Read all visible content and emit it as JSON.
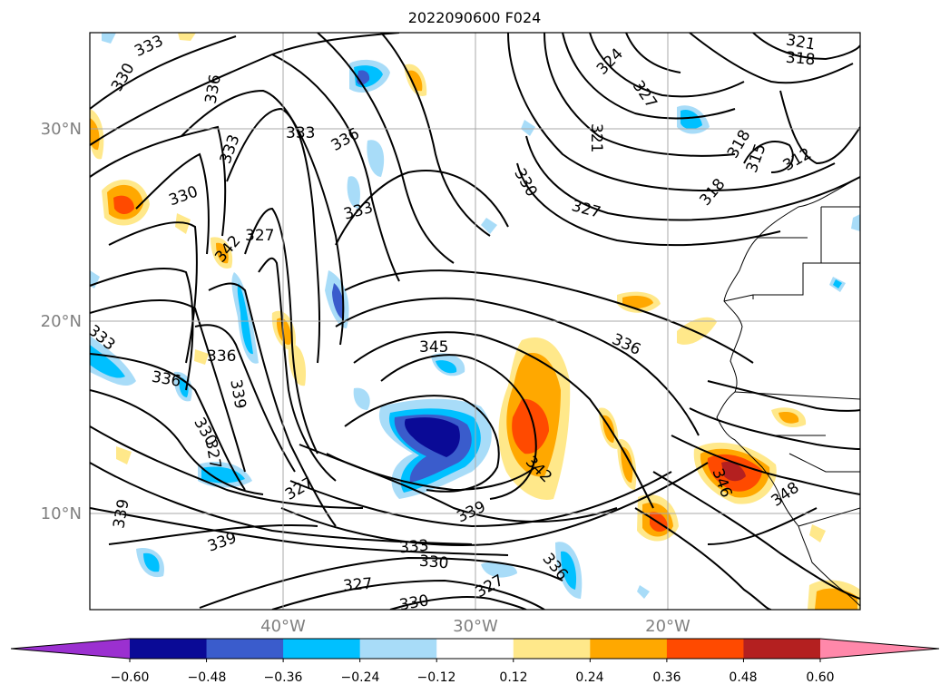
{
  "title": "2022090600 F024",
  "lat_labels": [
    "30°N",
    "20°N",
    "10°N"
  ],
  "lon_labels": [
    "40°W",
    "30°W",
    "20°W"
  ],
  "colorbar": {
    "ticks": [
      "−0.60",
      "−0.48",
      "−0.36",
      "−0.24",
      "−0.12",
      "0.12",
      "0.24",
      "0.36",
      "0.48",
      "0.60"
    ],
    "colors": [
      "#9b30d0",
      "#0a0a96",
      "#3a5ccc",
      "#00c0ff",
      "#a8dcf8",
      "#ffffff",
      "#ffe88a",
      "#ffa800",
      "#ff4a00",
      "#b42020",
      "#ff88aa"
    ]
  },
  "contour_labels": [
    "333",
    "330",
    "336",
    "333",
    "336",
    "321",
    "318",
    "324",
    "327",
    "321",
    "330",
    "327",
    "333",
    "318",
    "315",
    "312",
    "318",
    "330",
    "333",
    "342",
    "327",
    "336",
    "333",
    "336",
    "345",
    "336",
    "339",
    "330",
    "327",
    "327",
    "339",
    "339",
    "342",
    "339",
    "333",
    "330",
    "327",
    "327",
    "330",
    "336",
    "346",
    "348"
  ],
  "accent_colors": {
    "grid": "#a8a8a8",
    "tick_label": "#808080",
    "contour": "#000000"
  }
}
